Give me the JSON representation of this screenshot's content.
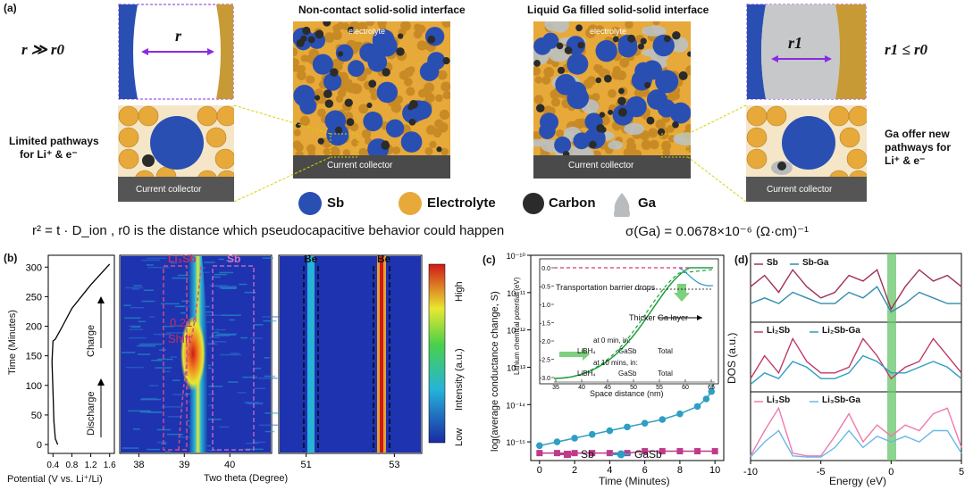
{
  "panel_a": {
    "label": "(a)",
    "left_condition": "r ≫ r0",
    "right_condition": "r1 ≤ r0",
    "left_gap_label": "r",
    "right_gap_label": "r1",
    "title_left": "Non-contact solid-solid interface",
    "title_right": "Liquid Ga filled solid-solid interface",
    "electrolyte_label_left": "electrolyte",
    "electrolyte_label_right": "electrolyte",
    "cc_left": "Current collector",
    "cc_mid_left": "Current collector",
    "cc_mid_right": "Current collector",
    "cc_right": "Current collector",
    "limited_text": [
      "Limited pathways",
      "for Li⁺ & e⁻"
    ],
    "ga_text": [
      "Ga offer new",
      "pathways for",
      "Li⁺ & e⁻"
    ],
    "legend": [
      "Sb",
      "Electrolyte",
      "Carbon",
      "Ga"
    ],
    "formula_left": "r² = t · D_ion , r0 is the distance which pseudocapacitive behavior could happen",
    "formula_right": "σ(Ga) = 0.0678×10⁻⁶  (Ω·cm)⁻¹",
    "colors": {
      "sb": "#2a4fb3",
      "electrolyte": "#e6a93a",
      "carbon": "#2b2b2b",
      "ga": "#b9bcbf",
      "cc": "#555555"
    }
  },
  "panel_b": {
    "label": "(b)",
    "ylabel": "Time (Minutes)",
    "yticks": [
      0,
      50,
      100,
      150,
      200,
      250,
      300
    ],
    "xlabel_potential": "Potential (V vs. Li⁺/Li)",
    "xticks_potential": [
      0.4,
      0.8,
      1.2,
      1.6
    ],
    "charge": "Charge",
    "discharge": "Discharge",
    "map_xticks_1": [
      38,
      39,
      40
    ],
    "map_xticks_2": [
      51,
      53
    ],
    "xlabel_theta": "Two theta (Degree)",
    "label_li3sb": "Li₃Sb",
    "label_sb": "Sb",
    "label_be1": "Be",
    "label_be2": "Be",
    "shift_value": "0.21°",
    "shift_word": "Shift",
    "colorbar_high": "High",
    "colorbar_low": "Low",
    "colorbar_label": "Intensity (a.u.)"
  },
  "panel_c": {
    "label": "(c)",
    "ylabel": "log(average conductance change, S)",
    "yticks": [
      "10⁻¹⁰",
      "10⁻¹¹",
      "10⁻¹²",
      "10⁻¹³",
      "10⁻¹⁴",
      "10⁻¹⁵"
    ],
    "xlabel": "Time (Minutes)",
    "xticks": [
      0,
      2,
      4,
      6,
      8,
      10
    ],
    "legend": [
      "Sb",
      "GaSb"
    ],
    "inset": {
      "ylabel": "Lithium chemical potential (eV)",
      "yticks": [
        "0.0",
        "-0.5",
        "-1.0",
        "-1.5",
        "-2.0",
        "-2.5",
        "-3.0"
      ],
      "xlabel": "Space distance (nm)",
      "xticks": [
        35,
        40,
        45,
        50,
        55,
        60,
        65
      ],
      "annotation_barrier": "Transportation barrier drops",
      "annotation_thicker": "Thicker Ga layer",
      "legend_title_0": "at 0 min, in:",
      "legend_title_10": "at 10 mins, in:",
      "legend_items": [
        "LiBH₄",
        "GaSb",
        "Total"
      ]
    }
  },
  "panel_d": {
    "label": "(d)",
    "ylabel": "DOS (a.u.)",
    "xlabel": "Energy (eV)",
    "xticks": [
      -10,
      -5,
      0,
      5
    ],
    "legend_1": [
      "Sb",
      "Sb-Ga"
    ],
    "legend_2": [
      "Li₂Sb",
      "Li₂Sb-Ga"
    ],
    "legend_3": [
      "Li₃Sb",
      "Li₃Sb-Ga"
    ]
  },
  "chart_data": [
    {
      "type": "line",
      "title": "",
      "xlabel": "Potential (V vs. Li⁺/Li)",
      "ylabel": "Time (Minutes)",
      "xlim": [
        0.3,
        1.7
      ],
      "ylim": [
        -15,
        320
      ],
      "series": [
        {
          "x": [
            0.5,
            0.45,
            0.42,
            0.4,
            0.38,
            0.4,
            0.45,
            0.6,
            0.8,
            1.2,
            1.6
          ],
          "y": [
            0,
            10,
            40,
            90,
            140,
            175,
            178,
            200,
            230,
            270,
            305
          ]
        }
      ]
    },
    {
      "type": "line",
      "title": "",
      "xlabel": "Time (Minutes)",
      "ylabel": "log(average conductance change, S)",
      "xlim": [
        -0.5,
        10.5
      ],
      "ylim": [
        -15.5,
        -10
      ],
      "series": [
        {
          "name": "Sb",
          "x": [
            0,
            1,
            2,
            3,
            4,
            5,
            6,
            7,
            8,
            9,
            10
          ],
          "y": [
            -15.3,
            -15.3,
            -15.3,
            -15.3,
            -15.3,
            -15.3,
            -15.25,
            -15.25,
            -15.25,
            -15.25,
            -15.25
          ]
        },
        {
          "name": "GaSb",
          "x": [
            0,
            1,
            2,
            3,
            4,
            5,
            6,
            7,
            8,
            9,
            9.5,
            9.8,
            10
          ],
          "y": [
            -15.1,
            -15.0,
            -14.9,
            -14.8,
            -14.7,
            -14.6,
            -14.5,
            -14.4,
            -14.25,
            -14.05,
            -13.85,
            -13.65,
            -13.3
          ]
        }
      ]
    },
    {
      "type": "line",
      "title": "",
      "xlabel": "Energy (eV)",
      "ylabel": "DOS (a.u.)",
      "xlim": [
        -10,
        5
      ],
      "series": [
        {
          "name": "Sb",
          "x": [
            -10,
            -9,
            -8,
            -7,
            -6,
            -5,
            -4,
            -3,
            -2,
            -1,
            0,
            1,
            2,
            3,
            4,
            5
          ],
          "y": [
            0.6,
            0.8,
            0.5,
            0.9,
            0.6,
            0.4,
            0.5,
            0.8,
            0.7,
            0.9,
            0.2,
            0.6,
            0.9,
            0.7,
            0.8,
            0.6
          ]
        },
        {
          "name": "Sb-Ga",
          "x": [
            -10,
            -9,
            -8,
            -7,
            -6,
            -5,
            -4,
            -3,
            -2,
            -1,
            0,
            1,
            2,
            3,
            4,
            5
          ],
          "y": [
            0.3,
            0.4,
            0.3,
            0.5,
            0.4,
            0.3,
            0.3,
            0.5,
            0.4,
            0.6,
            0.15,
            0.3,
            0.5,
            0.4,
            0.3,
            0.3
          ]
        },
        {
          "name": "Li₂Sb",
          "x": [
            -10,
            -9,
            -8,
            -7,
            -6,
            -5,
            -4,
            -3,
            -2,
            -1,
            0,
            1,
            2,
            3,
            4,
            5
          ],
          "y": [
            0.2,
            0.6,
            0.3,
            0.9,
            0.5,
            0.3,
            0.3,
            0.4,
            0.9,
            0.6,
            0.2,
            0.4,
            0.5,
            0.9,
            0.6,
            0.3
          ]
        },
        {
          "name": "Li₂Sb-Ga",
          "x": [
            -10,
            -9,
            -8,
            -7,
            -6,
            -5,
            -4,
            -3,
            -2,
            -1,
            0,
            1,
            2,
            3,
            4,
            5
          ],
          "y": [
            0.1,
            0.3,
            0.2,
            0.5,
            0.4,
            0.2,
            0.2,
            0.3,
            0.6,
            0.5,
            0.3,
            0.3,
            0.4,
            0.5,
            0.4,
            0.2
          ]
        },
        {
          "name": "Li₃Sb",
          "x": [
            -10,
            -9,
            -8,
            -7,
            -6,
            -5,
            -4,
            -3,
            -2,
            -1,
            0,
            1,
            2,
            3,
            4,
            5
          ],
          "y": [
            0.05,
            0.5,
            0.9,
            0.1,
            0.05,
            0.05,
            0.4,
            0.8,
            0.3,
            0.6,
            0.4,
            0.6,
            0.5,
            0.8,
            0.9,
            0.2
          ]
        },
        {
          "name": "Li₃Sb-Ga",
          "x": [
            -10,
            -9,
            -8,
            -7,
            -6,
            -5,
            -4,
            -3,
            -2,
            -1,
            0,
            1,
            2,
            3,
            4,
            5
          ],
          "y": [
            0.03,
            0.3,
            0.5,
            0.05,
            0.03,
            0.03,
            0.2,
            0.5,
            0.2,
            0.4,
            0.3,
            0.4,
            0.3,
            0.5,
            0.5,
            0.1
          ]
        }
      ]
    }
  ]
}
